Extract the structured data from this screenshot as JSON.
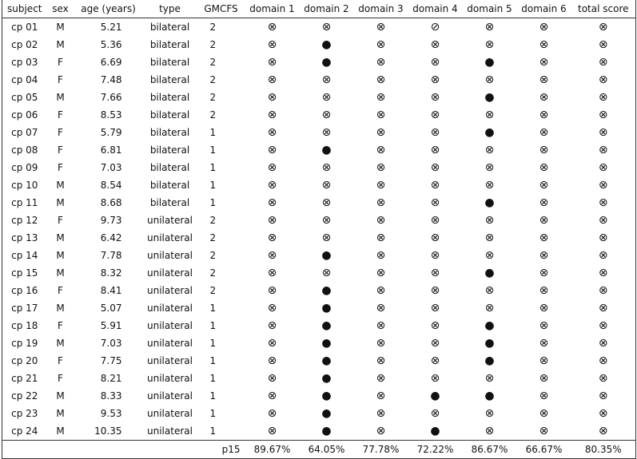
{
  "table": {
    "header": [
      "subject",
      "sex",
      "age (years)",
      "type",
      "GMCFS",
      "domain 1",
      "domain 2",
      "domain 3",
      "domain 4",
      "domain 5",
      "domain 6",
      "total score"
    ],
    "rows": [
      [
        "cp 01",
        "M",
        "5.21",
        "bilateral",
        "2",
        "⊗",
        "⊗",
        "⊗",
        "⊘",
        "⊗",
        "⊗",
        "⊗"
      ],
      [
        "cp 02",
        "M",
        "5.36",
        "bilateral",
        "2",
        "⊗",
        "●",
        "⊗",
        "⊗",
        "⊗",
        "⊗",
        "⊗"
      ],
      [
        "cp 03",
        "F",
        "6.69",
        "bilateral",
        "2",
        "⊗",
        "●",
        "⊗",
        "⊗",
        "●",
        "⊗",
        "⊗"
      ],
      [
        "cp 04",
        "F",
        "7.48",
        "bilateral",
        "2",
        "⊗",
        "⊗",
        "⊗",
        "⊗",
        "⊗",
        "⊗",
        "⊗"
      ],
      [
        "cp 05",
        "M",
        "7.66",
        "bilateral",
        "2",
        "⊗",
        "⊗",
        "⊗",
        "⊗",
        "●",
        "⊗",
        "⊗"
      ],
      [
        "cp 06",
        "F",
        "8.53",
        "bilateral",
        "2",
        "⊗",
        "⊗",
        "⊗",
        "⊗",
        "⊗",
        "⊗",
        "⊗"
      ],
      [
        "cp 07",
        "F",
        "5.79",
        "bilateral",
        "1",
        "⊗",
        "⊗",
        "⊗",
        "⊗",
        "●",
        "⊗",
        "⊗"
      ],
      [
        "cp 08",
        "F",
        "6.81",
        "bilateral",
        "1",
        "⊗",
        "●",
        "⊗",
        "⊗",
        "⊗",
        "⊗",
        "⊗"
      ],
      [
        "cp 09",
        "F",
        "7.03",
        "bilateral",
        "1",
        "⊗",
        "⊗",
        "⊗",
        "⊗",
        "⊗",
        "⊗",
        "⊗"
      ],
      [
        "cp 10",
        "M",
        "8.54",
        "bilateral",
        "1",
        "⊗",
        "⊗",
        "⊗",
        "⊗",
        "⊗",
        "⊗",
        "⊗"
      ],
      [
        "cp 11",
        "M",
        "8.68",
        "bilateral",
        "1",
        "⊗",
        "⊗",
        "⊗",
        "⊗",
        "●",
        "⊗",
        "⊗"
      ],
      [
        "cp 12",
        "F",
        "9.73",
        "unilateral",
        "2",
        "⊗",
        "⊗",
        "⊗",
        "⊗",
        "⊗",
        "⊗",
        "⊗"
      ],
      [
        "cp 13",
        "M",
        "6.42",
        "unilateral",
        "2",
        "⊗",
        "⊗",
        "⊗",
        "⊗",
        "⊗",
        "⊗",
        "⊗"
      ],
      [
        "cp 14",
        "M",
        "7.78",
        "unilateral",
        "2",
        "⊗",
        "●",
        "⊗",
        "⊗",
        "⊗",
        "⊗",
        "⊗"
      ],
      [
        "cp 15",
        "M",
        "8.32",
        "unilateral",
        "2",
        "⊗",
        "⊗",
        "⊗",
        "⊗",
        "●",
        "⊗",
        "⊗"
      ],
      [
        "cp 16",
        "F",
        "8.41",
        "unilateral",
        "2",
        "⊗",
        "●",
        "⊗",
        "⊗",
        "⊗",
        "⊗",
        "⊗"
      ],
      [
        "cp 17",
        "M",
        "5.07",
        "unilateral",
        "1",
        "⊗",
        "●",
        "⊗",
        "⊗",
        "⊗",
        "⊗",
        "⊗"
      ],
      [
        "cp 18",
        "F",
        "5.91",
        "unilateral",
        "1",
        "⊗",
        "●",
        "⊗",
        "⊗",
        "●",
        "⊗",
        "⊗"
      ],
      [
        "cp 19",
        "M",
        "7.03",
        "unilateral",
        "1",
        "⊗",
        "●",
        "⊗",
        "⊗",
        "●",
        "⊗",
        "⊗"
      ],
      [
        "cp 20",
        "F",
        "7.75",
        "unilateral",
        "1",
        "⊗",
        "●",
        "⊗",
        "⊗",
        "●",
        "⊗",
        "⊗"
      ],
      [
        "cp 21",
        "F",
        "8.21",
        "unilateral",
        "1",
        "⊗",
        "●",
        "⊗",
        "⊗",
        "⊗",
        "⊗",
        "⊗"
      ],
      [
        "cp 22",
        "M",
        "8.33",
        "unilateral",
        "1",
        "⊗",
        "●",
        "⊗",
        "●",
        "●",
        "⊗",
        "⊗"
      ],
      [
        "cp 23",
        "M",
        "9.53",
        "unilateral",
        "1",
        "⊗",
        "●",
        "⊗",
        "⊗",
        "⊗",
        "⊗",
        "⊗"
      ],
      [
        "cp 24",
        "M",
        "10.35",
        "unilateral",
        "1",
        "⊗",
        "●",
        "⊗",
        "●",
        "⊗",
        "⊗",
        "⊗"
      ]
    ],
    "footer": {
      "label": "p15",
      "values": [
        "89.67%",
        "64.05%",
        "77.78%",
        "72.22%",
        "86.67%",
        "66.67%",
        "80.35%"
      ]
    }
  }
}
